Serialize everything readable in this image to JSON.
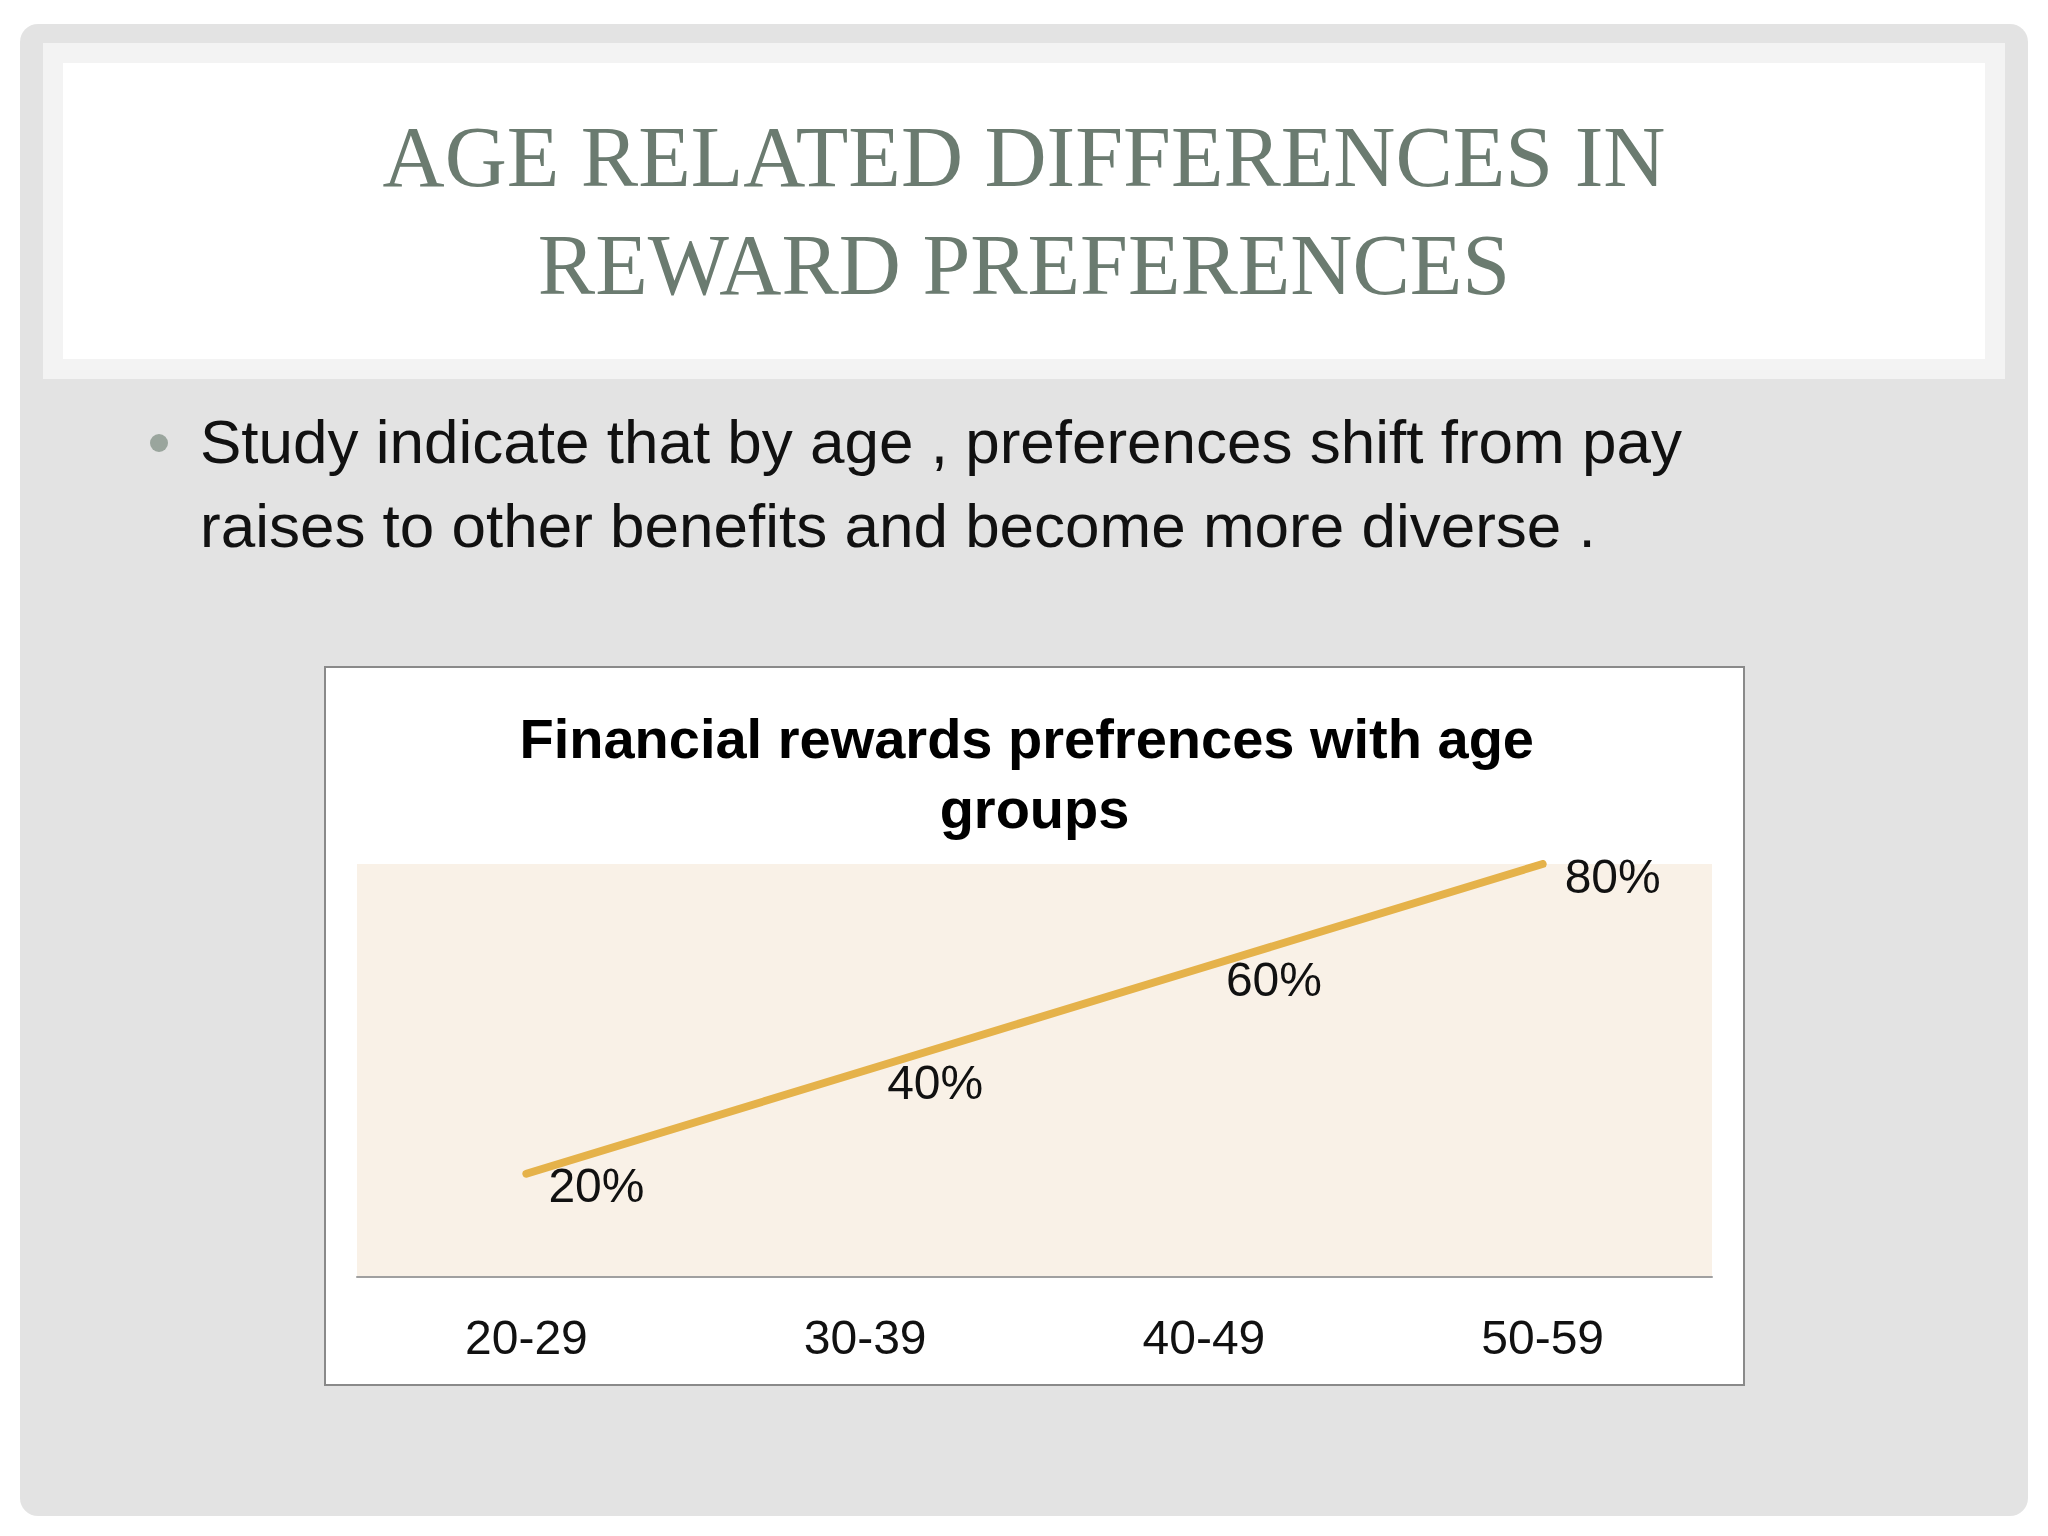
{
  "chart_data": {
    "type": "line",
    "title": "Financial rewards prefrences with age groups",
    "annotations": [
      "AGE RELATED DIFFERENCES IN REWARD PREFERENCES",
      "Study indicate that by age , preferences shift from pay raises to other benefits and become more diverse ."
    ],
    "categories": [
      "20-29",
      "30-39",
      "40-49",
      "50-59"
    ],
    "series": [
      {
        "color": "#e5b24a",
        "values": [
          20,
          40,
          60,
          80
        ],
        "value_labels": [
          "20%",
          "40%",
          "60%",
          "80%"
        ]
      }
    ],
    "tick_labels": "x",
    "marker": "none",
    "line_style": "solid",
    "grid": false
  }
}
